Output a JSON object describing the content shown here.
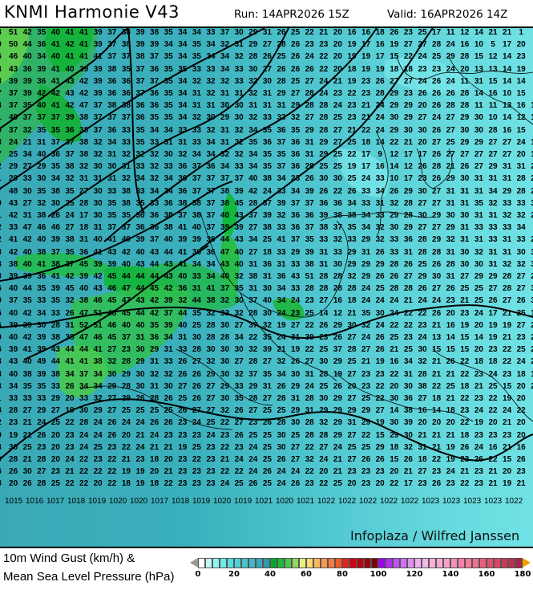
{
  "header": {
    "title": "KNMI Harmonie V43",
    "run": "Run: 14APR2026 15Z",
    "valid": "Valid: 16APR2026 14Z"
  },
  "map": {
    "credit": "Infoplaza / Wilfred Janssen",
    "gust_rows": [
      "3 51 42 35 40 41 41 39 37 38 39 38 35 34 34 33 37 30 29 31 26 25 22 21 20 16 16 18 26 23 25 17 11 12 14 21 21 1",
      "9 50 44 36 41 42 41 39 37 38 39 39 34 34 35 34 32 31 29 27 28 26 23 23 20 19 17 16 19 27 27 28 24 16 10 5 17 20",
      "6 46 40 34 40 41 41 41 37 37 38 37 35 34 35 34 34 32 28 26 25 26 24 22 20 19 19 17 15 22 24 25 29 28 15 12 14 23 2",
      "4 43 36 39 41 40 39 39 38 35 37 36 35 35 33 33 34 33 30 27 26 26 26 22 20 18 19 19 18 18 23 23 24 20 13 13 14 19 2",
      "8 39 39 36 41 43 42 39 36 36 37 37 35 34 32 32 32 33 32 30 28 25 27 24 21 19 23 26 27 27 24 26 24 11 31 15 14 14",
      "7 37 39 42 42 43 42 39 36 36 37 36 35 34 31 32 31 31 32 31 29 27 28 24 23 22 23 28 29 23 26 26 26 28 14 16 10 15 1",
      "4 37 35 40 41 42 47 37 38 38 36 36 35 34 31 31 30 30 31 31 31 29 28 28 24 23 21 24 29 29 20 26 28 28 11 11 13 16 16",
      "1 40 37 37 37 39 38 37 37 37 36 35 35 34 32 30 29 30 32 33 33 32 27 28 25 23 21 24 30 29 27 24 27 29 30 10 14 12 18",
      "0 37 32 35 35 36 38 37 36 33 35 34 34 33 33 32 31 32 34 35 36 35 29 28 27 21 22 24 29 30 30 26 27 30 30 28 16 15 9",
      "3 24 21 31 37 37 38 32 34 33 35 33 31 31 33 34 31 32 35 36 37 36 31 29 27 25 18 14 22 21 20 27 25 29 29 27 27 24 15",
      "7 25 34 40 36 37 38 32 31 32 32 32 30 32 34 34 32 32 34 35 35 36 31 29 25 22 17 9 12 17 17 26 27 27 27 27 27 20 17",
      "2 29 27 29 35 38 32 30 30 31 33 32 33 36 37 36 34 33 34 35 37 36 28 25 25 19 17 16 14 12 26 28 21 26 27 29 31 31 27",
      "1 29 33 30 34 32 31 31 31 32 34 32 34 36 37 37 37 37 40 38 34 23 26 30 30 25 24 33 10 17 23 26 29 30 31 31 31 28 27",
      "7 48 30 35 38 35 27 30 33 38 33 34 34 36 37 37 38 39 42 24 33 34 39 26 22 26 33 34 26 29 30 27 31 31 31 34 29 28 29",
      "0 43 27 32 30 25 28 30 35 38 35 33 36 38 38 37 38 45 28 37 39 37 37 36 36 34 33 31 32 28 27 27 31 31 35 32 33 33 33",
      "1 42 31 38 26 24 17 30 35 35 36 36 38 37 38 37 40 43 37 39 32 36 36 39 38 38 34 33 29 28 30 29 30 30 31 31 32 32 29",
      "2 33 47 46 46 27 18 31 37 37 36 36 38 41 40 37 39 39 27 38 33 36 37 38 37 35 34 32 30 29 27 27 29 31 33 33 33 34 3",
      "2 41 42 40 39 38 31 40 41 40 39 37 40 39 39 36 44 43 34 25 41 37 35 33 32 33 29 32 33 36 28 29 32 31 31 33 31 33 28",
      "3 42 40 38 37 35 36 41 43 42 40 43 44 41 36 36 47 40 27 18 33 29 39 31 33 29 31 26 33 31 28 28 31 30 32 31 31 30 30",
      "3 38 40 41 38 37 45 39 39 40 43 44 43 41 34 34 43 40 31 36 31 33 38 31 30 29 29 29 28 26 25 26 28 30 30 31 32 32 33",
      "8 39 39 36 41 42 39 42 45 44 44 44 43 40 33 34 40 32 38 31 36 43 51 28 28 32 29 26 26 27 29 30 31 27 29 29 28 27 28",
      "6 40 44 35 39 45 40 43 46 47 44 45 42 36 31 41 37 35 31 30 34 33 28 28 28 28 24 25 28 28 26 27 26 25 25 27 28 27 30",
      "9 37 35 33 35 32 38 46 45 47 43 42 39 32 44 38 32 30 37 40 34 24 23 27 16 18 24 24 24 21 24 24 23 21 25 26 27 26 31",
      "6 40 42 34 33 26 47 51 48 45 44 42 37 44 35 32 33 32 28 30 24 23 25 14 12 21 35 30 24 22 22 26 20 23 24 17 21 25 12",
      "6 39 39 30 28 31 52 51 46 40 40 35 39 40 25 28 30 27 37 32 19 27 22 26 29 30 32 24 22 22 23 21 16 19 20 19 19 27 28",
      "0 40 42 39 38 38 47 46 45 37 31 36 34 31 30 28 28 34 22 35 24 31 39 23 26 27 24 26 25 23 24 13 14 15 14 19 21 23 24",
      "6 39 41 39 43 44 44 41 27 23 30 29 31 33 28 30 30 30 32 39 21 19 22 25 37 28 27 26 21 25 30 15 15 15 20 23 22 25 22",
      "3 43 40 49 44 41 41 38 32 28 29 31 33 26 27 32 30 27 28 27 32 26 27 30 29 25 21 19 16 34 32 21 26 22 18 18 22 24 22",
      "8 40 38 39 38 34 37 34 30 29 30 32 32 26 26 29 30 32 37 35 34 30 31 28 19 27 23 23 22 31 28 21 21 22 23 24 23 18 17",
      "3 34 35 35 33 26 34 34 29 28 30 31 30 27 26 27 29 33 29 31 26 29 24 25 26 20 23 22 20 30 38 22 25 18 21 25 15 20 21",
      "1 33 33 33 29 20 33 32 27 29 26 28 26 25 26 27 30 35 28 27 28 31 28 30 29 27 25 22 30 36 27 18 21 22 23 22 19 20 2",
      "8 28 27 29 27 19 30 29 27 25 25 25 25 26 27 27 32 26 27 25 25 29 31 29 29 29 29 27 14 38 16 14 18 23 24 22 24 22 1",
      "2 23 21 24 25 22 28 24 26 24 24 26 26 23 24 25 22 27 23 26 28 30 28 32 29 31 29 19 30 39 20 20 20 22 19 20 21 20 2",
      "9 19 21 26 20 23 24 24 26 20 21 24 23 23 23 24 23 26 25 25 30 25 28 28 29 27 22 15 29 30 21 21 21 18 23 23 23 20",
      "4 30 25 23 20 23 24 25 23 22 24 21 21 19 25 23 22 23 24 25 30 27 22 27 24 25 25 29 18 32 31 21 19 26 24 16 21 16",
      "0 28 21 28 20 24 22 23 22 21 23 18 20 23 22 23 21 24 24 25 26 27 32 24 21 27 26 26 15 26 18 22 19 23 26 22 15 26 1",
      "6 26 30 27 23 21 22 22 22 19 19 20 21 23 23 23 22 22 24 26 24 24 22 20 21 23 23 23 20 21 27 23 24 21 23 21 20 23 1",
      "8 20 26 28 25 22 22 20 22 18 19 18 22 23 23 23 24 25 26 25 24 26 23 22 25 20 23 20 22 17 23 26 23 22 23 21 19 21 2"
    ],
    "isobar_labels": [
      "1015",
      "1016",
      "1017",
      "1018",
      "1019",
      "1020",
      "1020",
      "1017",
      "1018",
      "1019",
      "1020",
      "1019",
      "1021",
      "1020",
      "1021",
      "1022",
      "1022",
      "1022",
      "1022",
      "1022",
      "1023",
      "1023",
      "1023",
      "1023",
      "1022"
    ]
  },
  "legend": {
    "line1": "10m Wind Gust (km/h) &",
    "line2": "Mean Sea Level Pressure (hPa)",
    "ticks": [
      "0",
      "20",
      "40",
      "60",
      "80",
      "100",
      "120",
      "140",
      "160",
      "180"
    ],
    "colors": [
      "#ffffff",
      "#c0f8f8",
      "#90f4f4",
      "#70e8e8",
      "#58dce0",
      "#50d0d8",
      "#48c4d0",
      "#40b8c8",
      "#38a8b8",
      "#3098a8",
      "#00a830",
      "#20b840",
      "#50c850",
      "#90d860",
      "#e8f080",
      "#f8d870",
      "#f8b860",
      "#f89850",
      "#f87840",
      "#f05828",
      "#e82020",
      "#d00010",
      "#b80010",
      "#980010",
      "#780010",
      "#a000f0",
      "#b030f0",
      "#c050f0",
      "#d070f0",
      "#e090f0",
      "#f0b0f0",
      "#f0b8e8",
      "#f8b0d8",
      "#f8a8d0",
      "#f8a0c8",
      "#f890b8",
      "#f880a8",
      "#f87898",
      "#f07090",
      "#e86080",
      "#e05070",
      "#d84868",
      "#c83858",
      "#b83050",
      "#a02848"
    ],
    "under_color": "#999999",
    "over_color": "#f0a000"
  }
}
